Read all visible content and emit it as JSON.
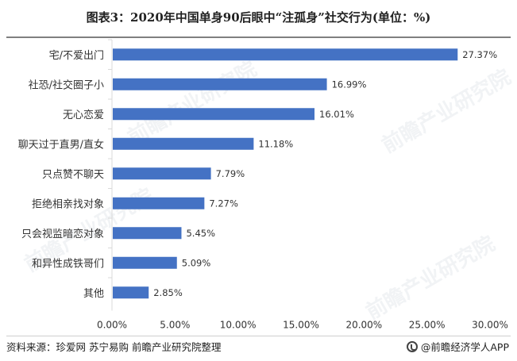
{
  "title": "图表3：2020年中国单身90后眼中“注孤身”社交行为(单位：%)",
  "source": "资料来源：珍爱网 苏宁易购 前瞻产业研究院整理",
  "brand": "@前瞻经济学人APP",
  "watermark": "前瞻产业研究院",
  "colors": {
    "bar": "#4472c4",
    "axis": "#d9d9d9",
    "text": "#333333"
  },
  "chart_data": {
    "type": "bar",
    "orientation": "horizontal",
    "categories": [
      "宅/不爱出门",
      "社恐/社交圈子小",
      "无心恋爱",
      "聊天过于直男/直女",
      "只点赞不聊天",
      "拒绝相亲找对象",
      "只会视监暗恋对象",
      "和异性成铁哥们",
      "其他"
    ],
    "values": [
      27.37,
      16.99,
      16.01,
      11.18,
      7.79,
      7.27,
      5.45,
      5.09,
      2.85
    ],
    "value_labels": [
      "27.37%",
      "16.99%",
      "16.01%",
      "11.18%",
      "7.79%",
      "7.27%",
      "5.45%",
      "5.09%",
      "2.85%"
    ],
    "xticks": [
      "0.00%",
      "5.00%",
      "10.00%",
      "15.00%",
      "20.00%",
      "25.00%",
      "30.00%"
    ],
    "xlim": [
      0,
      30
    ],
    "grid": false
  }
}
